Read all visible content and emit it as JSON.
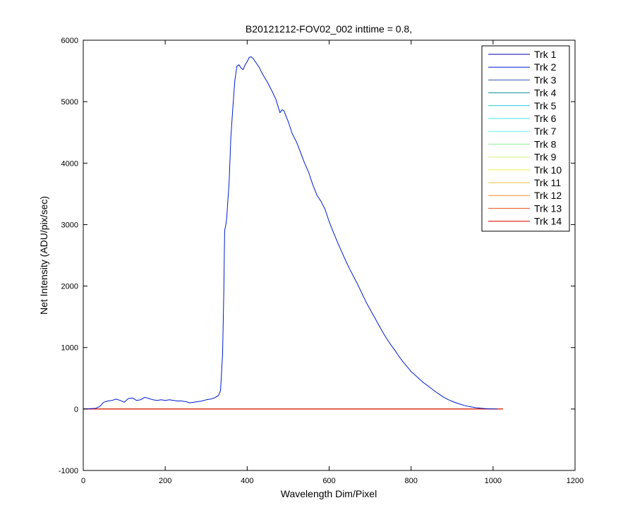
{
  "chart_data": {
    "type": "line",
    "title": "B20121212-FOV02_002 inttime = 0.8,",
    "xlabel": "Wavelength Dim/Pixel",
    "ylabel": "Net Intensity (ADU/pix/sec)",
    "xlim": [
      0,
      1200
    ],
    "ylim": [
      -1000,
      6000
    ],
    "xticks": [
      0,
      200,
      400,
      600,
      800,
      1000,
      1200
    ],
    "yticks": [
      -1000,
      0,
      1000,
      2000,
      3000,
      4000,
      5000,
      6000
    ],
    "grid": false,
    "legend_position": "top-right",
    "series": [
      {
        "name": "Trk 1",
        "color": "#0000aa",
        "x": [
          0,
          1024
        ],
        "y": [
          0,
          0
        ]
      },
      {
        "name": "Trk 2",
        "color": "#001bd0",
        "x": [
          0,
          30,
          40,
          50,
          60,
          70,
          80,
          90,
          100,
          110,
          120,
          130,
          140,
          150,
          160,
          170,
          180,
          190,
          200,
          210,
          220,
          230,
          240,
          250,
          260,
          270,
          280,
          290,
          300,
          310,
          320,
          330,
          335,
          340,
          343,
          345,
          348,
          350,
          353,
          356,
          360,
          365,
          370,
          375,
          380,
          385,
          390,
          395,
          400,
          405,
          410,
          415,
          420,
          425,
          430,
          435,
          440,
          450,
          460,
          470,
          480,
          485,
          490,
          495,
          500,
          510,
          520,
          530,
          540,
          550,
          560,
          570,
          580,
          590,
          600,
          610,
          620,
          630,
          640,
          650,
          660,
          670,
          680,
          690,
          700,
          710,
          720,
          730,
          740,
          750,
          760,
          770,
          780,
          790,
          800,
          810,
          820,
          830,
          840,
          850,
          860,
          870,
          880,
          890,
          900,
          910,
          920,
          930,
          940,
          950,
          960,
          970,
          980,
          990,
          1000,
          1010
        ],
        "y": [
          0,
          10,
          40,
          110,
          130,
          140,
          160,
          140,
          110,
          170,
          180,
          140,
          150,
          190,
          170,
          150,
          140,
          150,
          140,
          150,
          140,
          130,
          130,
          120,
          100,
          110,
          120,
          130,
          150,
          160,
          180,
          220,
          300,
          900,
          1900,
          2900,
          3000,
          3100,
          3400,
          3700,
          4400,
          4900,
          5350,
          5580,
          5600,
          5550,
          5520,
          5600,
          5650,
          5720,
          5730,
          5700,
          5650,
          5600,
          5550,
          5480,
          5420,
          5310,
          5180,
          5040,
          4820,
          4870,
          4850,
          4760,
          4680,
          4480,
          4350,
          4180,
          4000,
          3850,
          3650,
          3480,
          3380,
          3250,
          3050,
          2880,
          2720,
          2570,
          2420,
          2280,
          2150,
          2020,
          1880,
          1740,
          1620,
          1500,
          1380,
          1260,
          1150,
          1050,
          960,
          860,
          770,
          690,
          610,
          550,
          490,
          430,
          380,
          330,
          280,
          235,
          190,
          155,
          125,
          100,
          78,
          58,
          42,
          30,
          20,
          12,
          6,
          3,
          1,
          0
        ]
      },
      {
        "name": "Trk 3",
        "color": "#2f5ea8",
        "x": [
          0,
          1024
        ],
        "y": [
          0,
          0
        ]
      },
      {
        "name": "Trk 4",
        "color": "#138a9a",
        "x": [
          0,
          1024
        ],
        "y": [
          0,
          0
        ]
      },
      {
        "name": "Trk 5",
        "color": "#22c9d6",
        "x": [
          0,
          1024
        ],
        "y": [
          0,
          0
        ]
      },
      {
        "name": "Trk 6",
        "color": "#45e0ee",
        "x": [
          0,
          1024
        ],
        "y": [
          0,
          0
        ]
      },
      {
        "name": "Trk 7",
        "color": "#6ff0f0",
        "x": [
          0,
          1024
        ],
        "y": [
          0,
          0
        ]
      },
      {
        "name": "Trk 8",
        "color": "#93ef93",
        "x": [
          0,
          1024
        ],
        "y": [
          0,
          0
        ]
      },
      {
        "name": "Trk 9",
        "color": "#d4ef82",
        "x": [
          0,
          1024
        ],
        "y": [
          0,
          0
        ]
      },
      {
        "name": "Trk 10",
        "color": "#f0f050",
        "x": [
          0,
          1024
        ],
        "y": [
          0,
          0
        ]
      },
      {
        "name": "Trk 11",
        "color": "#f0be3c",
        "x": [
          0,
          1024
        ],
        "y": [
          0,
          0
        ]
      },
      {
        "name": "Trk 12",
        "color": "#f08c28",
        "x": [
          0,
          1024
        ],
        "y": [
          0,
          0
        ]
      },
      {
        "name": "Trk 13",
        "color": "#e8501e",
        "x": [
          0,
          1024
        ],
        "y": [
          0,
          0
        ]
      },
      {
        "name": "Trk 14",
        "color": "#e00000",
        "x": [
          0,
          1024
        ],
        "y": [
          0,
          0
        ]
      }
    ]
  }
}
